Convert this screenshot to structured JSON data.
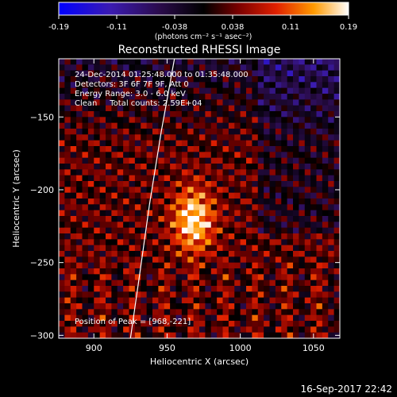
{
  "colorbar": {
    "ticks": [
      "-0.19",
      "-0.11",
      "-0.038",
      "0.038",
      "0.11",
      "0.19"
    ],
    "unit_label": "(photons cm⁻² s⁻¹ asec⁻²)"
  },
  "annotations": {
    "time_range": "24-Dec-2014 01:25:48.000 to 01:35:48.000",
    "detectors": "Detectors: 3F 6F 7F 9F, Att 0",
    "energy_range": "Energy Range: 3.0 - 6.0 keV",
    "clean_counts": "Clean     Total counts: 2.59E+04",
    "peak_position": "Position of Peak = [968,-221]"
  },
  "footer": {
    "date": "16-Sep-2017 22:42"
  },
  "chart_data": {
    "type": "heatmap",
    "title": "Reconstructed RHESSI Image",
    "xlabel": "Heliocentric X (arcsec)",
    "ylabel": "Heliocentric Y (arcsec)",
    "xlim": [
      876,
      1068
    ],
    "ylim": [
      -302,
      -110
    ],
    "x_ticks": [
      900,
      950,
      1000,
      1050
    ],
    "y_ticks": [
      -150,
      -200,
      -250,
      -300
    ],
    "color_range": [
      -0.19,
      0.19
    ],
    "colormap": "black-purple-red-orange-yellow-white",
    "peak": {
      "x": 968,
      "y": -221
    },
    "limb_curve": [
      [
        955,
        -110
      ],
      [
        946,
        -160
      ],
      [
        938,
        -210
      ],
      [
        931,
        -260
      ],
      [
        925,
        -302
      ]
    ]
  }
}
